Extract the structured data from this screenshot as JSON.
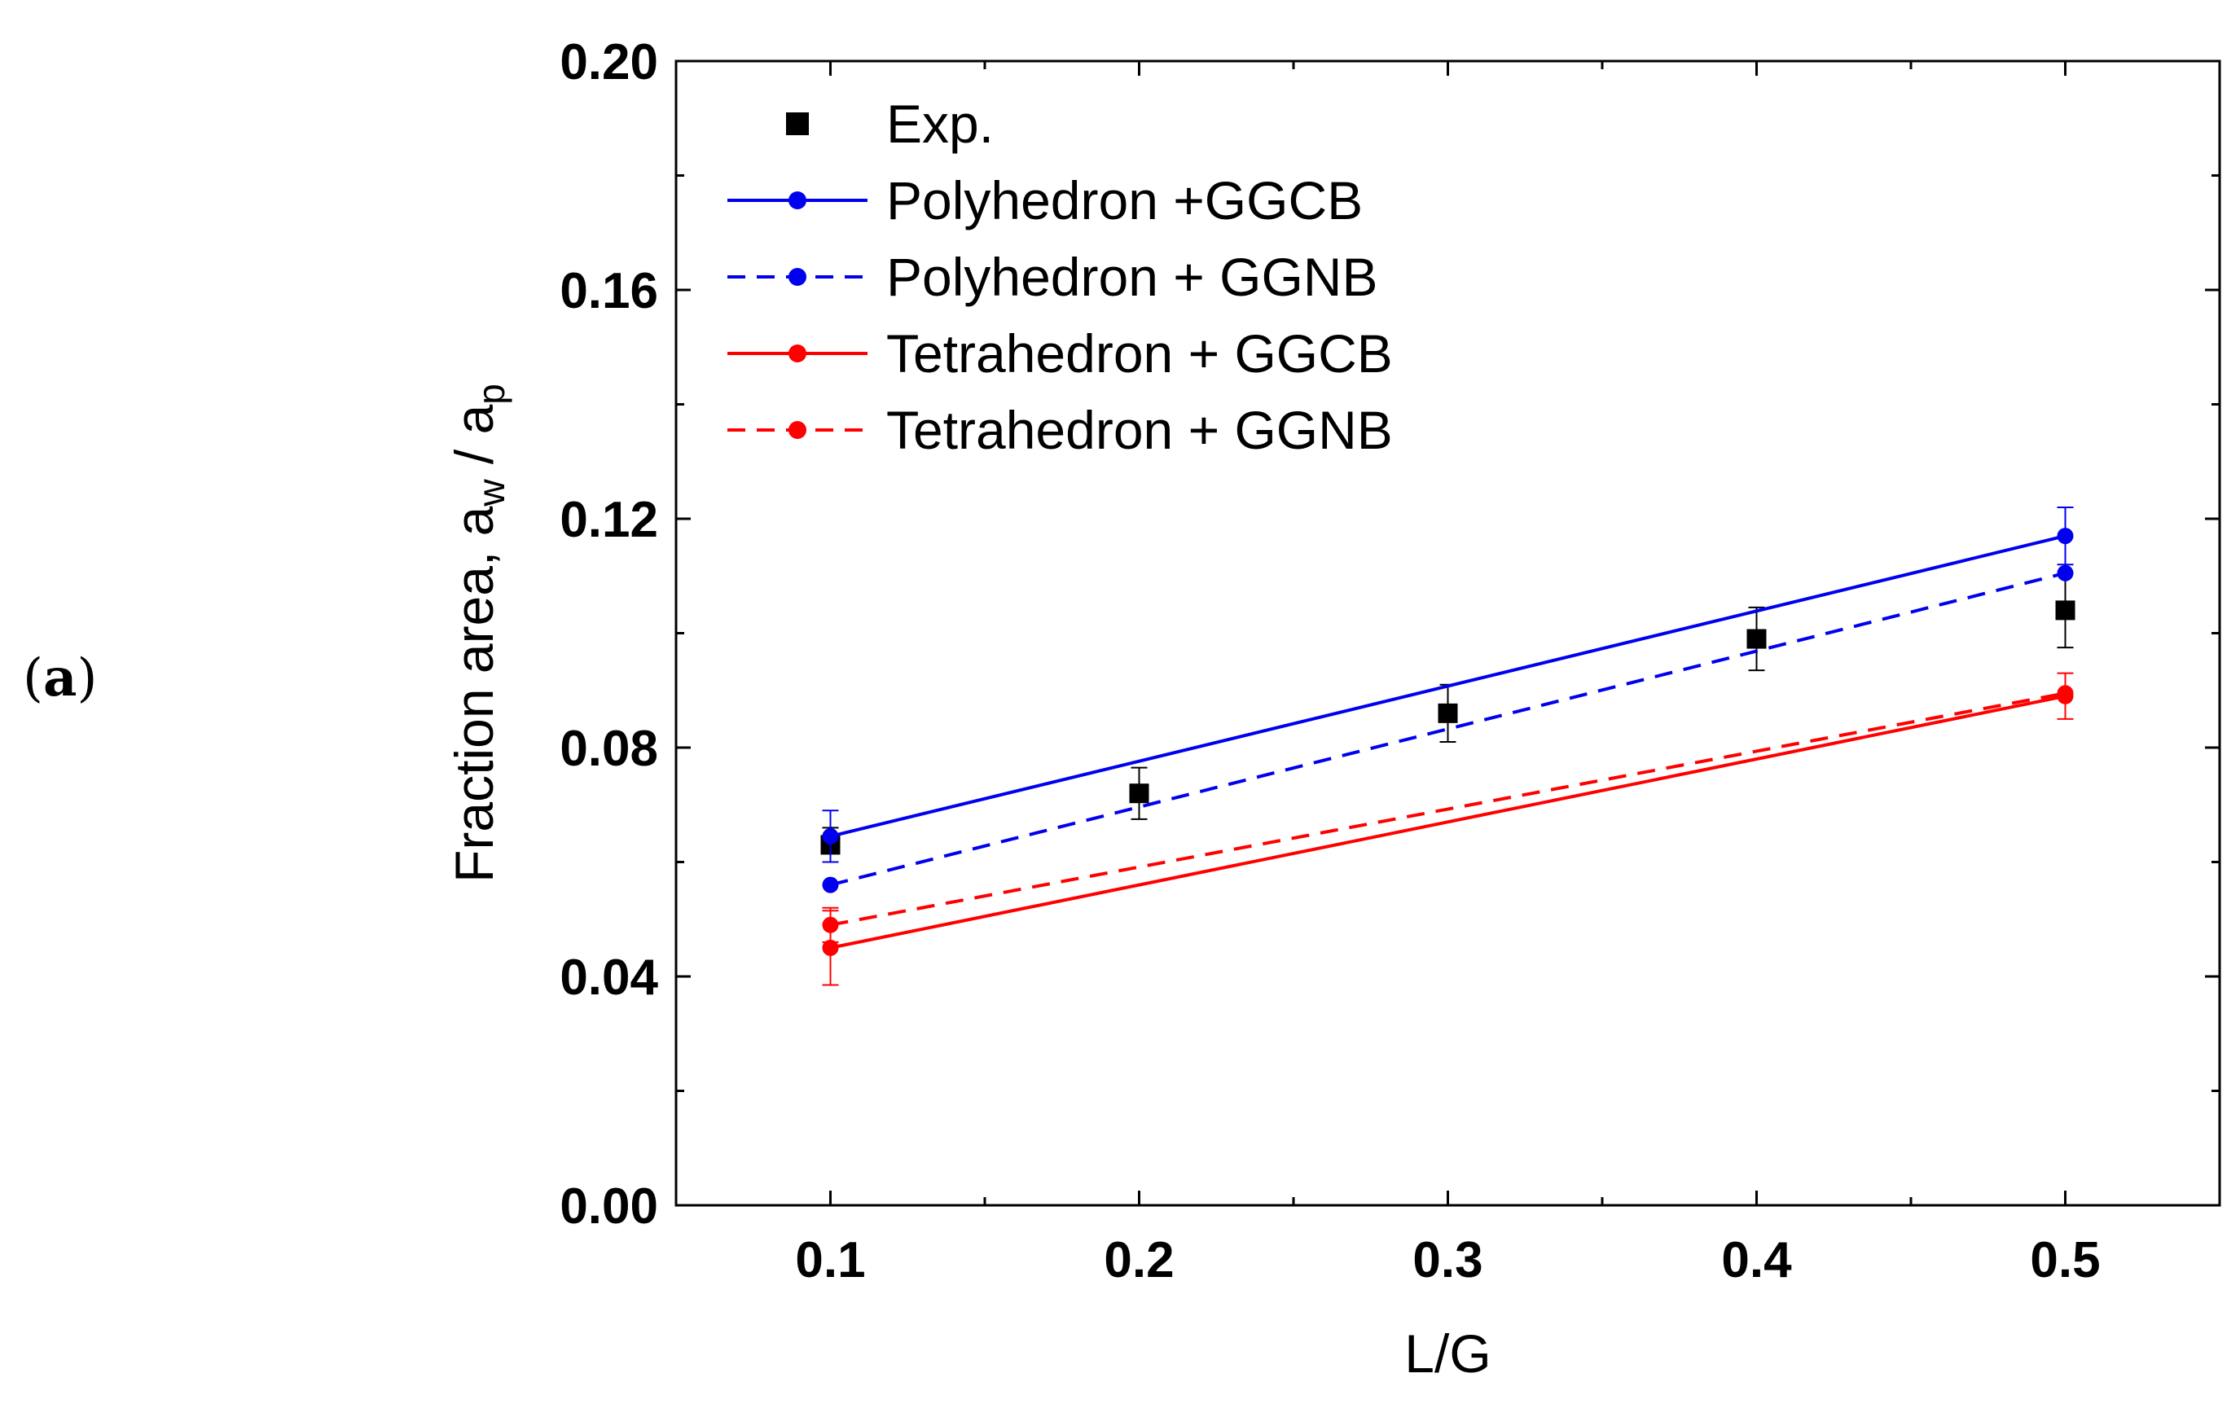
{
  "panel_label": "a",
  "chart_data": {
    "type": "line",
    "xlabel": "L/G",
    "ylabel": "Fraction area, a_w / a_p",
    "ylabel_parts": {
      "main": "Fraction area, a",
      "sub1": "w",
      "mid": " / a",
      "sub2": "p"
    },
    "xlim": [
      0.05,
      0.55
    ],
    "ylim": [
      0.0,
      0.2
    ],
    "xticks": [
      0.1,
      0.2,
      0.3,
      0.4,
      0.5
    ],
    "xtick_labels": [
      "0.1",
      "0.2",
      "0.3",
      "0.4",
      "0.5"
    ],
    "yticks": [
      0.0,
      0.04,
      0.08,
      0.12,
      0.16,
      0.2
    ],
    "ytick_labels": [
      "0.00",
      "0.04",
      "0.08",
      "0.12",
      "0.16",
      "0.20"
    ],
    "legend_position": "top-left",
    "series": [
      {
        "name": "Exp.",
        "color": "#000000",
        "marker": "square",
        "line": "none",
        "x": [
          0.1,
          0.2,
          0.3,
          0.4,
          0.5
        ],
        "y": [
          0.063,
          0.072,
          0.086,
          0.099,
          0.104
        ],
        "err": [
          0.003,
          0.0045,
          0.005,
          0.0055,
          0.0065
        ]
      },
      {
        "name": "Polyhedron  +GGCB",
        "color": "#0000ee",
        "marker": "circle",
        "line": "solid",
        "x": [
          0.1,
          0.5
        ],
        "y": [
          0.0645,
          0.117
        ],
        "err": [
          0.0045,
          0.005
        ]
      },
      {
        "name": "Polyhedron  + GGNB",
        "color": "#0000ee",
        "marker": "circle",
        "line": "dashed",
        "x": [
          0.1,
          0.5
        ],
        "y": [
          0.056,
          0.1105
        ],
        "err": [
          0.0,
          0.0
        ]
      },
      {
        "name": "Tetrahedron + GGCB",
        "color": "#ff0000",
        "marker": "circle",
        "line": "solid",
        "x": [
          0.1,
          0.5
        ],
        "y": [
          0.045,
          0.089
        ],
        "err": [
          0.0065,
          0.004
        ]
      },
      {
        "name": "Tetrahedron + GGNB",
        "color": "#ff0000",
        "marker": "circle",
        "line": "dashed",
        "x": [
          0.1,
          0.5
        ],
        "y": [
          0.049,
          0.0895
        ],
        "err": [
          0.003,
          0.0
        ]
      }
    ]
  }
}
